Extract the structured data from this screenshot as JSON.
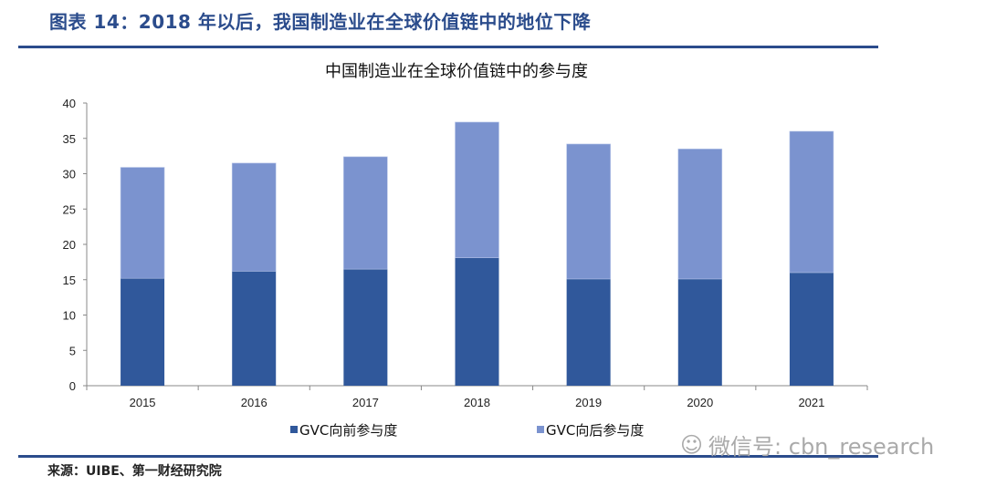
{
  "figure_title": "图表 14：2018 年以后，我国制造业在全球价值链中的地位下降",
  "source": "来源：UIBE、第一财经研究院",
  "watermark": "微信号: cbn_research",
  "colors": {
    "forward": "#30589b",
    "backward": "#7b93cf",
    "accent": "#2b4c8c"
  },
  "chart_data": {
    "type": "bar",
    "stacked": true,
    "title": "中国制造业在全球价值链中的参与度",
    "xlabel": "",
    "ylabel": "",
    "categories": [
      "2015",
      "2016",
      "2017",
      "2018",
      "2019",
      "2020",
      "2021"
    ],
    "series": [
      {
        "name": "GVC向前参与度",
        "values": [
          15.2,
          16.2,
          16.5,
          18.1,
          15.1,
          15.1,
          16.0
        ]
      },
      {
        "name": "GVC向后参与度",
        "values": [
          15.7,
          15.3,
          15.9,
          19.2,
          19.1,
          18.4,
          20.0
        ]
      }
    ],
    "ylim": [
      0,
      40
    ],
    "yticks": [
      0,
      5,
      10,
      15,
      20,
      25,
      30,
      35,
      40
    ],
    "grid": false,
    "legend": "bottom"
  }
}
